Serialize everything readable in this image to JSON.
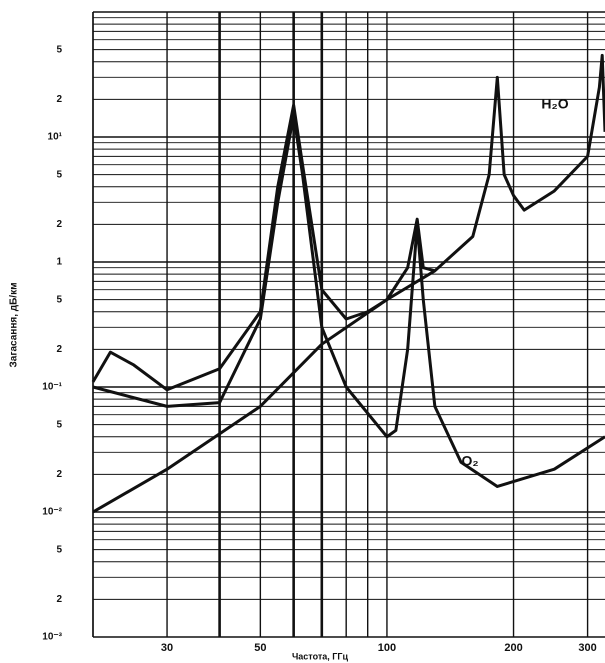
{
  "chart_data": {
    "type": "line",
    "xlabel": "Частота, ГГц",
    "ylabel": "Загасання, дБ/км",
    "xscale": "log",
    "yscale": "log",
    "xlim": [
      20,
      330
    ],
    "ylim": [
      0.001,
      100
    ],
    "xticks": [
      30,
      50,
      100,
      200,
      300
    ],
    "xgrid": [
      20,
      30,
      40,
      50,
      60,
      70,
      80,
      90,
      100,
      200,
      300
    ],
    "yticks": [
      {
        "value": 0.001,
        "label": "10⁻³"
      },
      {
        "value": 0.002,
        "label": "2"
      },
      {
        "value": 0.005,
        "label": "5"
      },
      {
        "value": 0.01,
        "label": "10⁻²"
      },
      {
        "value": 0.02,
        "label": "2"
      },
      {
        "value": 0.05,
        "label": "5"
      },
      {
        "value": 0.1,
        "label": "10⁻¹"
      },
      {
        "value": 0.2,
        "label": "2"
      },
      {
        "value": 0.5,
        "label": "5"
      },
      1,
      {
        "value": 2,
        "label": "2"
      },
      {
        "value": 5,
        "label": "5"
      },
      {
        "value": 10,
        "label": "10¹"
      },
      {
        "value": 20,
        "label": "2"
      },
      {
        "value": 50,
        "label": "5"
      }
    ],
    "yminor": [
      0.001,
      0.002,
      0.003,
      0.004,
      0.005,
      0.006,
      0.007,
      0.008,
      0.009,
      0.01,
      0.02,
      0.03,
      0.04,
      0.05,
      0.06,
      0.07,
      0.08,
      0.09,
      0.1,
      0.2,
      0.3,
      0.4,
      0.5,
      0.6,
      0.7,
      0.8,
      0.9,
      1,
      2,
      3,
      4,
      5,
      6,
      7,
      8,
      9,
      10,
      20,
      30,
      40,
      50,
      60,
      70,
      80,
      90,
      100
    ],
    "grid": true,
    "series": [
      {
        "color": "#111111",
        "x": [
          20,
          22,
          25,
          30,
          40,
          50,
          55,
          60,
          63,
          70,
          80,
          90,
          100,
          112,
          118,
          122,
          130
        ],
        "values": [
          0.11,
          0.19,
          0.15,
          0.095,
          0.14,
          0.4,
          4,
          18,
          6,
          0.6,
          0.35,
          0.4,
          0.5,
          0.9,
          2.2,
          0.9,
          0.85
        ]
      },
      {
        "name": "O₂",
        "color": "#111111",
        "x": [
          20,
          30,
          40,
          50,
          55,
          60,
          63,
          70,
          80,
          100,
          105,
          112,
          118,
          122,
          130,
          150,
          183,
          250,
          330
        ],
        "values": [
          0.1,
          0.07,
          0.075,
          0.35,
          3,
          15,
          5,
          0.3,
          0.1,
          0.04,
          0.045,
          0.2,
          2,
          0.5,
          0.07,
          0.025,
          0.016,
          0.022,
          0.04
        ]
      },
      {
        "name": "H₂O",
        "color": "#111111",
        "x": [
          20,
          30,
          50,
          70,
          100,
          130,
          160,
          175,
          183,
          190,
          200,
          212,
          250,
          300,
          320,
          325,
          330
        ],
        "values": [
          0.01,
          0.022,
          0.07,
          0.22,
          0.5,
          0.85,
          1.6,
          5,
          30,
          5,
          3.4,
          2.6,
          3.7,
          7,
          25,
          45,
          11
        ]
      }
    ]
  }
}
